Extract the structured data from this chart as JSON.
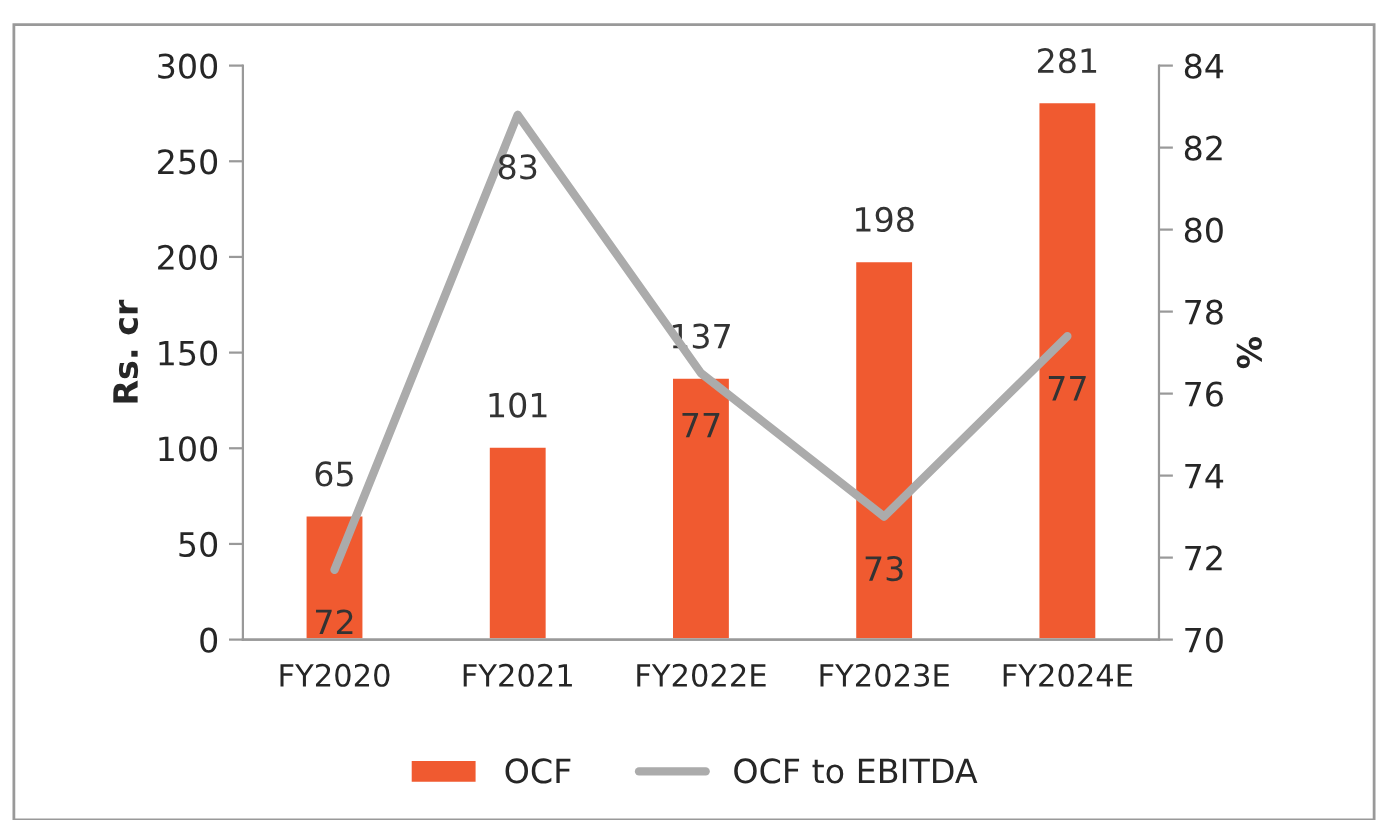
{
  "chart_data": {
    "type": "bar",
    "ylabel": "Rs. cr",
    "y2label": "%",
    "categories": [
      "FY2020",
      "FY2021",
      "FY2022E",
      "FY2023E",
      "FY2024E"
    ],
    "series": [
      {
        "name": "OCF",
        "color": "#f05a30",
        "values": [
          65,
          101,
          137,
          198,
          281
        ],
        "value_labels": [
          "65",
          "101",
          "137",
          "198",
          "281"
        ]
      },
      {
        "name": "OCF to EBITDA",
        "type": "line",
        "axis": "y2",
        "color": "#ababab",
        "values": [
          71.7,
          82.8,
          76.5,
          73.0,
          77.4
        ],
        "value_labels": [
          "72",
          "83",
          "77",
          "73",
          "77"
        ]
      }
    ],
    "ylim": [
      0,
      300
    ],
    "yticks": [
      0,
      50,
      100,
      150,
      200,
      250,
      300
    ],
    "y2lim": [
      70,
      84
    ],
    "y2ticks": [
      70,
      72,
      74,
      76,
      78,
      80,
      82,
      84
    ],
    "legend": "bottom",
    "grid": false,
    "marker": "none",
    "line_style": "solid"
  }
}
